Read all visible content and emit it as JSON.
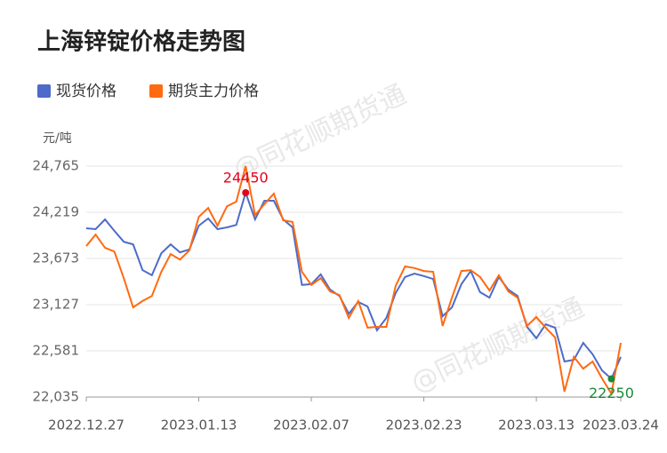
{
  "chart_data": {
    "type": "line",
    "title": "上海锌锭价格走势图",
    "y_unit": "元/吨",
    "watermark": "@同花顺期货通",
    "categories": [
      "2022.12.27",
      null,
      null,
      null,
      null,
      null,
      null,
      null,
      null,
      null,
      null,
      null,
      "2023.01.13",
      null,
      null,
      null,
      null,
      null,
      null,
      null,
      null,
      null,
      null,
      null,
      "2023.02.07",
      null,
      null,
      null,
      null,
      null,
      null,
      null,
      null,
      null,
      null,
      null,
      "2023.02.23",
      null,
      null,
      null,
      null,
      null,
      null,
      null,
      null,
      null,
      null,
      null,
      "2023.03.13",
      null,
      null,
      null,
      null,
      null,
      null,
      null,
      null,
      "2023.03.24"
    ],
    "series": [
      {
        "name": "现货价格",
        "color": "#4e6bc9",
        "values": [
          24030,
          24020,
          24135,
          24000,
          23870,
          23840,
          23535,
          23475,
          23735,
          23840,
          23745,
          23780,
          24060,
          24145,
          24020,
          24040,
          24070,
          24450,
          24135,
          24355,
          24355,
          24135,
          24040,
          23360,
          23370,
          23485,
          23305,
          23230,
          23020,
          23160,
          23105,
          22825,
          22970,
          23265,
          23455,
          23495,
          23465,
          23430,
          22990,
          23095,
          23370,
          23525,
          23275,
          23210,
          23455,
          23305,
          23230,
          22865,
          22730,
          22895,
          22855,
          22455,
          22475,
          22675,
          22540,
          22350,
          22250,
          22510
        ]
      },
      {
        "name": "期货主力价格",
        "color": "#ff6a10",
        "values": [
          23820,
          23955,
          23800,
          23755,
          23440,
          23095,
          23170,
          23230,
          23515,
          23725,
          23660,
          23770,
          24165,
          24270,
          24060,
          24290,
          24345,
          24765,
          24185,
          24315,
          24440,
          24125,
          24105,
          23515,
          23360,
          23440,
          23285,
          23240,
          22970,
          23170,
          22855,
          22865,
          22865,
          23350,
          23580,
          23560,
          23525,
          23515,
          22875,
          23210,
          23525,
          23535,
          23455,
          23295,
          23475,
          23285,
          23210,
          22875,
          22980,
          22855,
          22740,
          22100,
          22510,
          22370,
          22455,
          22255,
          22075,
          22675
        ]
      }
    ],
    "ylim": [
      22035,
      24765
    ],
    "yticks": [
      {
        "value": 22035,
        "label": "22,035"
      },
      {
        "value": 22581,
        "label": "22,581"
      },
      {
        "value": 23127,
        "label": "23,127"
      },
      {
        "value": 23673,
        "label": "23,673"
      },
      {
        "value": 24219,
        "label": "24,219"
      },
      {
        "value": 24765,
        "label": "24,765"
      }
    ],
    "grid": true,
    "max_color": "#e8001c",
    "min_color": "#1a8a3a"
  }
}
